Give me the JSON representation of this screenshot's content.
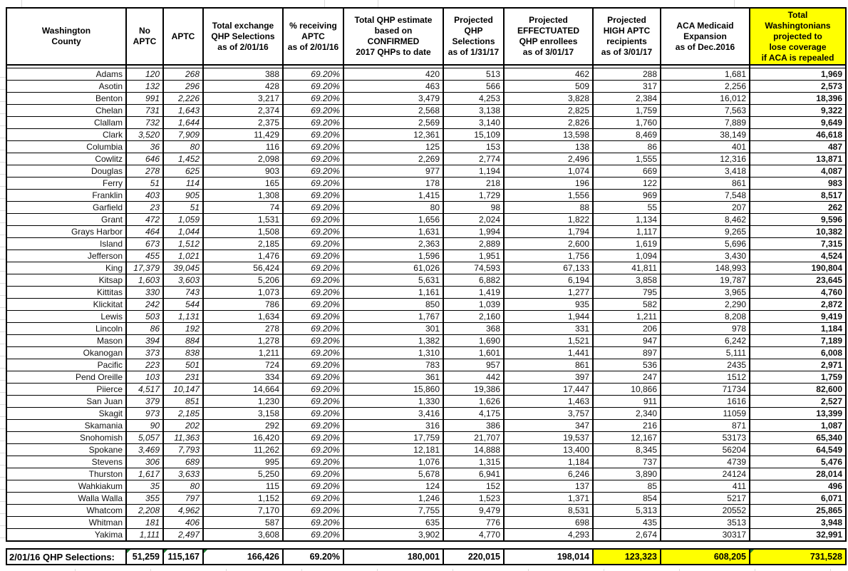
{
  "table": {
    "columns": [
      {
        "id": "county",
        "label": "Washington\nCounty"
      },
      {
        "id": "no-aptc",
        "label": "No\nAPTC"
      },
      {
        "id": "aptc",
        "label": "APTC"
      },
      {
        "id": "total-exchange",
        "label": "Total exchange\nQHP Selections\nas of 2/01/16"
      },
      {
        "id": "pct-receiving-aptc",
        "label": "% receiving\nAPTC\nas of 2/01/16"
      },
      {
        "id": "qhp-estimate",
        "label": "Total QHP estimate\nbased on\nCONFIRMED\n2017 QHPs to date"
      },
      {
        "id": "projected-qhp",
        "label": "Projected\nQHP Selections\nas of 1/31/17"
      },
      {
        "id": "projected-effectuated",
        "label": "Projected\nEFFECTUATED\nQHP enrollees\nas of 3/01/17"
      },
      {
        "id": "projected-high-aptc",
        "label": "Projected\nHIGH APTC\nrecipients\nas of 3/01/17"
      },
      {
        "id": "medicaid-expansion",
        "label": "ACA Medicaid\nExpansion\nas of Dec.2016"
      },
      {
        "id": "total-lose-coverage",
        "label": "Total\nWashingtonians\nprojected to\nlose coverage\nif ACA is repealed"
      }
    ],
    "rows": [
      [
        "Adams",
        "120",
        "268",
        "388",
        "69.20%",
        "420",
        "513",
        "462",
        "288",
        "1,681",
        "1,969"
      ],
      [
        "Asotin",
        "132",
        "296",
        "428",
        "69.20%",
        "463",
        "566",
        "509",
        "317",
        "2,256",
        "2,573"
      ],
      [
        "Benton",
        "991",
        "2,226",
        "3,217",
        "69.20%",
        "3,479",
        "4,253",
        "3,828",
        "2,384",
        "16,012",
        "18,396"
      ],
      [
        "Chelan",
        "731",
        "1,643",
        "2,374",
        "69.20%",
        "2,568",
        "3,138",
        "2,825",
        "1,759",
        "7,563",
        "9,322"
      ],
      [
        "Clallam",
        "732",
        "1,644",
        "2,375",
        "69.20%",
        "2,569",
        "3,140",
        "2,826",
        "1,760",
        "7,889",
        "9,649"
      ],
      [
        "Clark",
        "3,520",
        "7,909",
        "11,429",
        "69.20%",
        "12,361",
        "15,109",
        "13,598",
        "8,469",
        "38,149",
        "46,618"
      ],
      [
        "Columbia",
        "36",
        "80",
        "116",
        "69.20%",
        "125",
        "153",
        "138",
        "86",
        "401",
        "487"
      ],
      [
        "Cowlitz",
        "646",
        "1,452",
        "2,098",
        "69.20%",
        "2,269",
        "2,774",
        "2,496",
        "1,555",
        "12,316",
        "13,871"
      ],
      [
        "Douglas",
        "278",
        "625",
        "903",
        "69.20%",
        "977",
        "1,194",
        "1,074",
        "669",
        "3,418",
        "4,087"
      ],
      [
        "Ferry",
        "51",
        "114",
        "165",
        "69.20%",
        "178",
        "218",
        "196",
        "122",
        "861",
        "983"
      ],
      [
        "Franklin",
        "403",
        "905",
        "1,308",
        "69.20%",
        "1,415",
        "1,729",
        "1,556",
        "969",
        "7,548",
        "8,517"
      ],
      [
        "Garfield",
        "23",
        "51",
        "74",
        "69.20%",
        "80",
        "98",
        "88",
        "55",
        "207",
        "262"
      ],
      [
        "Grant",
        "472",
        "1,059",
        "1,531",
        "69.20%",
        "1,656",
        "2,024",
        "1,822",
        "1,134",
        "8,462",
        "9,596"
      ],
      [
        "Grays Harbor",
        "464",
        "1,044",
        "1,508",
        "69.20%",
        "1,631",
        "1,994",
        "1,794",
        "1,117",
        "9,265",
        "10,382"
      ],
      [
        "Island",
        "673",
        "1,512",
        "2,185",
        "69.20%",
        "2,363",
        "2,889",
        "2,600",
        "1,619",
        "5,696",
        "7,315"
      ],
      [
        "Jefferson",
        "455",
        "1,021",
        "1,476",
        "69.20%",
        "1,596",
        "1,951",
        "1,756",
        "1,094",
        "3,430",
        "4,524"
      ],
      [
        "King",
        "17,379",
        "39,045",
        "56,424",
        "69.20%",
        "61,026",
        "74,593",
        "67,133",
        "41,811",
        "148,993",
        "190,804"
      ],
      [
        "Kitsap",
        "1,603",
        "3,603",
        "5,206",
        "69.20%",
        "5,631",
        "6,882",
        "6,194",
        "3,858",
        "19,787",
        "23,645"
      ],
      [
        "Kittitas",
        "330",
        "743",
        "1,073",
        "69.20%",
        "1,161",
        "1,419",
        "1,277",
        "795",
        "3,965",
        "4,760"
      ],
      [
        "Klickitat",
        "242",
        "544",
        "786",
        "69.20%",
        "850",
        "1,039",
        "935",
        "582",
        "2,290",
        "2,872"
      ],
      [
        "Lewis",
        "503",
        "1,131",
        "1,634",
        "69.20%",
        "1,767",
        "2,160",
        "1,944",
        "1,211",
        "8,208",
        "9,419"
      ],
      [
        "Lincoln",
        "86",
        "192",
        "278",
        "69.20%",
        "301",
        "368",
        "331",
        "206",
        "978",
        "1,184"
      ],
      [
        "Mason",
        "394",
        "884",
        "1,278",
        "69.20%",
        "1,382",
        "1,690",
        "1,521",
        "947",
        "6,242",
        "7,189"
      ],
      [
        "Okanogan",
        "373",
        "838",
        "1,211",
        "69.20%",
        "1,310",
        "1,601",
        "1,441",
        "897",
        "5,111",
        "6,008"
      ],
      [
        "Pacific",
        "223",
        "501",
        "724",
        "69.20%",
        "783",
        "957",
        "861",
        "536",
        "2435",
        "2,971"
      ],
      [
        "Pend Oreille",
        "103",
        "231",
        "334",
        "69.20%",
        "361",
        "442",
        "397",
        "247",
        "1512",
        "1,759"
      ],
      [
        "Piierce",
        "4,517",
        "10,147",
        "14,664",
        "69.20%",
        "15,860",
        "19,386",
        "17,447",
        "10,866",
        "71734",
        "82,600"
      ],
      [
        "San Juan",
        "379",
        "851",
        "1,230",
        "69.20%",
        "1,330",
        "1,626",
        "1,463",
        "911",
        "1616",
        "2,527"
      ],
      [
        "Skagit",
        "973",
        "2,185",
        "3,158",
        "69.20%",
        "3,416",
        "4,175",
        "3,757",
        "2,340",
        "11059",
        "13,399"
      ],
      [
        "Skamania",
        "90",
        "202",
        "292",
        "69.20%",
        "316",
        "386",
        "347",
        "216",
        "871",
        "1,087"
      ],
      [
        "Snohomish",
        "5,057",
        "11,363",
        "16,420",
        "69.20%",
        "17,759",
        "21,707",
        "19,537",
        "12,167",
        "53173",
        "65,340"
      ],
      [
        "Spokane",
        "3,469",
        "7,793",
        "11,262",
        "69.20%",
        "12,181",
        "14,888",
        "13,400",
        "8,345",
        "56204",
        "64,549"
      ],
      [
        "Stevens",
        "306",
        "689",
        "995",
        "69.20%",
        "1,076",
        "1,315",
        "1,184",
        "737",
        "4739",
        "5,476"
      ],
      [
        "Thurston",
        "1,617",
        "3,633",
        "5,250",
        "69.20%",
        "5,678",
        "6,941",
        "6,246",
        "3,890",
        "24124",
        "28,014"
      ],
      [
        "Wahkiakum",
        "35",
        "80",
        "115",
        "69.20%",
        "124",
        "152",
        "137",
        "85",
        "411",
        "496"
      ],
      [
        "Walla Walla",
        "355",
        "797",
        "1,152",
        "69.20%",
        "1,246",
        "1,523",
        "1,371",
        "854",
        "5217",
        "6,071"
      ],
      [
        "Whatcom",
        "2,208",
        "4,962",
        "7,170",
        "69.20%",
        "7,755",
        "9,479",
        "8,531",
        "5,313",
        "20552",
        "25,865"
      ],
      [
        "Whitman",
        "181",
        "406",
        "587",
        "69.20%",
        "635",
        "776",
        "698",
        "435",
        "3513",
        "3,948"
      ],
      [
        "Yakima",
        "1,111",
        "2,497",
        "3,608",
        "69.20%",
        "3,902",
        "4,770",
        "4,293",
        "2,674",
        "30317",
        "32,991"
      ]
    ],
    "totals": {
      "label": "2/01/16 QHP Selections:",
      "values": [
        "51,259",
        "115,167",
        "166,426",
        "69.20%",
        "180,001",
        "220,015",
        "198,014",
        "123,323",
        "608,205",
        "731,528"
      ],
      "flagged_value_indexes": [
        0,
        1,
        2,
        9
      ],
      "yellow_value_indexes": [
        7,
        8,
        9
      ]
    }
  },
  "colors": {
    "pale_yellow": "#FFFFCC",
    "bright_yellow": "#FFFF00",
    "flag_green": "#1F7D33",
    "border": "#000000",
    "gridline": "#DADADA"
  }
}
